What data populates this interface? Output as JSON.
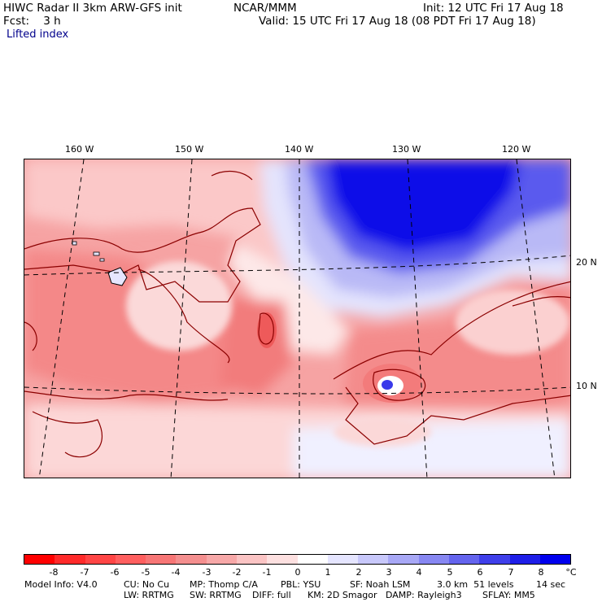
{
  "header": {
    "title_left": "HIWC Radar II 3km ARW-GFS init",
    "source": "NCAR/MMM",
    "init": "Init: 12 UTC Fri 17 Aug 18",
    "fcst": "Fcst:    3 h",
    "valid": "Valid: 15 UTC Fri 17 Aug 18 (08 PDT Fri 17 Aug 18)",
    "field": "Lifted index"
  },
  "map": {
    "lon_labels": [
      "160 W",
      "150 W",
      "140 W",
      "130 W",
      "120 W"
    ],
    "lat_labels": [
      "20 N",
      "10 N"
    ],
    "coast_color": "#8b0000",
    "grid_color": "#000000"
  },
  "colorbar": {
    "colors": [
      "#ff0000",
      "#ff2a2a",
      "#ff4545",
      "#ff5f5f",
      "#f77676",
      "#f48f8f",
      "#f7a8a8",
      "#fbc4c4",
      "#fde0e0",
      "#ffffff",
      "#e5e5ff",
      "#c8c8fb",
      "#a8a8f6",
      "#8787f2",
      "#6464ee",
      "#3f3fea",
      "#1e1ee8",
      "#0000ee"
    ],
    "ticks": [
      "-8",
      "-7",
      "-6",
      "-5",
      "-4",
      "-3",
      "-2",
      "-1",
      "0",
      "1",
      "2",
      "3",
      "4",
      "5",
      "6",
      "7",
      "8"
    ],
    "unit": "°C"
  },
  "footer": {
    "line1": [
      "Model Info: V4.0",
      "CU: No Cu",
      "MP: Thomp C/A",
      "PBL: YSU",
      "SF: Noah LSM",
      "3.0 km  51 levels",
      "14 sec"
    ],
    "line2": [
      "LW: RRTMG",
      "SW: RRTMG",
      "DIFF: full",
      "KM: 2D Smagor",
      "DAMP: Rayleigh3",
      "SFLAY: MM5"
    ]
  }
}
